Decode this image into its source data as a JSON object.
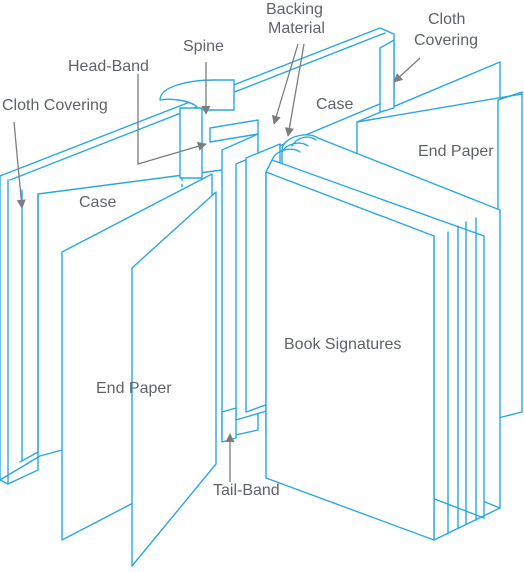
{
  "colors": {
    "line": "#29a8e0",
    "label": "#5f6368",
    "pointer": "#7d7d7d",
    "background": "#ffffff"
  },
  "labels": {
    "backing_material_line1": "Backing",
    "backing_material_line2": "Material",
    "cloth_covering_right_line1": "Cloth",
    "cloth_covering_right_line2": "Covering",
    "spine": "Spine",
    "head_band": "Head-Band",
    "cloth_covering_left": "Cloth Covering",
    "case_right": "Case",
    "end_paper_right": "End Paper",
    "case_left": "Case",
    "book_signatures": "Book Signatures",
    "end_paper_left": "End Paper",
    "tail_band": "Tail-Band"
  }
}
